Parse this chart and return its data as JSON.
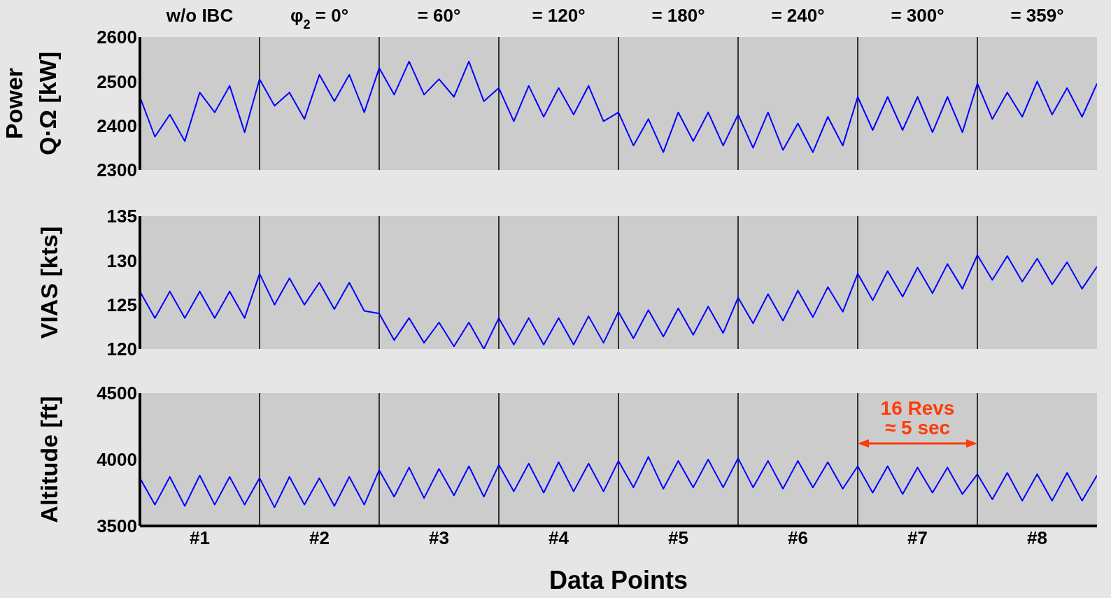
{
  "chart_data": [
    {
      "type": "line",
      "ylabel": "Power\nQ·Ω [kW]",
      "color": "#0000ff",
      "marker": "none",
      "line_style": "solid",
      "grid": false,
      "legend": false,
      "tick_labels": "y",
      "xlim": [
        0,
        8
      ],
      "ylim": [
        2300,
        2600
      ],
      "yticks": [
        2300,
        2400,
        2500,
        2600
      ],
      "annotations": [
        "w/o IBC",
        "φ$_{2}$ = 0°",
        "= 60°",
        "= 120°",
        "= 180°",
        "= 240°",
        "= 300°",
        "= 359°"
      ],
      "ref_lines": [
        {
          "axis": "x",
          "value": 1,
          "color": "#000000"
        },
        {
          "axis": "x",
          "value": 2,
          "color": "#000000"
        },
        {
          "axis": "x",
          "value": 3,
          "color": "#000000"
        },
        {
          "axis": "x",
          "value": 4,
          "color": "#000000"
        },
        {
          "axis": "x",
          "value": 5,
          "color": "#000000"
        },
        {
          "axis": "x",
          "value": 6,
          "color": "#000000"
        },
        {
          "axis": "x",
          "value": 7,
          "color": "#000000"
        }
      ],
      "x": [
        0,
        0.125,
        0.25,
        0.375,
        0.5,
        0.625,
        0.75,
        0.875,
        1,
        1.125,
        1.25,
        1.375,
        1.5,
        1.625,
        1.75,
        1.875,
        2,
        2.125,
        2.25,
        2.375,
        2.5,
        2.625,
        2.75,
        2.875,
        3,
        3.125,
        3.25,
        3.375,
        3.5,
        3.625,
        3.75,
        3.875,
        4,
        4.125,
        4.25,
        4.375,
        4.5,
        4.625,
        4.75,
        4.875,
        5,
        5.125,
        5.25,
        5.375,
        5.5,
        5.625,
        5.75,
        5.875,
        6,
        6.125,
        6.25,
        6.375,
        6.5,
        6.625,
        6.75,
        6.875,
        7,
        7.125,
        7.25,
        7.375,
        7.5,
        7.625,
        7.75,
        7.875,
        8
      ],
      "values": [
        2465,
        2375,
        2425,
        2365,
        2475,
        2430,
        2490,
        2385,
        2505,
        2445,
        2475,
        2415,
        2515,
        2455,
        2515,
        2430,
        2530,
        2470,
        2545,
        2470,
        2505,
        2465,
        2545,
        2455,
        2485,
        2410,
        2490,
        2420,
        2485,
        2425,
        2490,
        2410,
        2430,
        2355,
        2415,
        2340,
        2430,
        2365,
        2430,
        2355,
        2425,
        2350,
        2430,
        2345,
        2405,
        2340,
        2420,
        2355,
        2465,
        2390,
        2465,
        2390,
        2465,
        2385,
        2465,
        2385,
        2495,
        2415,
        2475,
        2420,
        2500,
        2425,
        2485,
        2420,
        2495
      ]
    },
    {
      "type": "line",
      "ylabel": "VIAS [kts]",
      "color": "#0000ff",
      "marker": "none",
      "line_style": "solid",
      "grid": false,
      "legend": false,
      "tick_labels": "y",
      "xlim": [
        0,
        8
      ],
      "ylim": [
        120,
        135
      ],
      "yticks": [
        120,
        125,
        130,
        135
      ],
      "ref_lines": [
        {
          "axis": "x",
          "value": 1,
          "color": "#000000"
        },
        {
          "axis": "x",
          "value": 2,
          "color": "#000000"
        },
        {
          "axis": "x",
          "value": 3,
          "color": "#000000"
        },
        {
          "axis": "x",
          "value": 4,
          "color": "#000000"
        },
        {
          "axis": "x",
          "value": 5,
          "color": "#000000"
        },
        {
          "axis": "x",
          "value": 6,
          "color": "#000000"
        },
        {
          "axis": "x",
          "value": 7,
          "color": "#000000"
        }
      ],
      "x": [
        0,
        0.125,
        0.25,
        0.375,
        0.5,
        0.625,
        0.75,
        0.875,
        1,
        1.125,
        1.25,
        1.375,
        1.5,
        1.625,
        1.75,
        1.875,
        2,
        2.125,
        2.25,
        2.375,
        2.5,
        2.625,
        2.75,
        2.875,
        3,
        3.125,
        3.25,
        3.375,
        3.5,
        3.625,
        3.75,
        3.875,
        4,
        4.125,
        4.25,
        4.375,
        4.5,
        4.625,
        4.75,
        4.875,
        5,
        5.125,
        5.25,
        5.375,
        5.5,
        5.625,
        5.75,
        5.875,
        6,
        6.125,
        6.25,
        6.375,
        6.5,
        6.625,
        6.75,
        6.875,
        7,
        7.125,
        7.25,
        7.375,
        7.5,
        7.625,
        7.75,
        7.875,
        8
      ],
      "values": [
        126.5,
        123.5,
        126.5,
        123.5,
        126.5,
        123.5,
        126.5,
        123.5,
        128.5,
        125,
        128,
        125,
        127.5,
        124.5,
        127.5,
        124.3,
        124,
        121,
        123.5,
        120.7,
        123,
        120.3,
        123,
        120,
        123.5,
        120.5,
        123.5,
        120.5,
        123.5,
        120.5,
        123.7,
        120.7,
        124.2,
        121.2,
        124.4,
        121.4,
        124.6,
        121.6,
        124.8,
        121.8,
        125.8,
        122.9,
        126.2,
        123.2,
        126.6,
        123.6,
        127,
        124.2,
        128.5,
        125.5,
        128.8,
        125.9,
        129.2,
        126.3,
        129.6,
        126.8,
        130.6,
        127.8,
        130.5,
        127.6,
        130.2,
        127.3,
        129.8,
        126.8,
        129.3
      ]
    },
    {
      "type": "line",
      "ylabel": "Altitude [ft]",
      "xlabel": "Data Points",
      "color": "#0000ff",
      "marker": "none",
      "line_style": "solid",
      "grid": false,
      "legend": false,
      "xlim": [
        0,
        8
      ],
      "xticks": [
        {
          "value": 0.5,
          "label": "#1"
        },
        {
          "value": 1.5,
          "label": "#2"
        },
        {
          "value": 2.5,
          "label": "#3"
        },
        {
          "value": 3.5,
          "label": "#4"
        },
        {
          "value": 4.5,
          "label": "#5"
        },
        {
          "value": 5.5,
          "label": "#6"
        },
        {
          "value": 6.5,
          "label": "#7"
        },
        {
          "value": 7.5,
          "label": "#8"
        }
      ],
      "ylim": [
        3500,
        4500
      ],
      "yticks": [
        3500,
        4000,
        4500
      ],
      "annotations": [
        "16 Revs",
        "≈ 5 sec"
      ],
      "ref_lines": [
        {
          "axis": "x",
          "value": 1,
          "color": "#000000"
        },
        {
          "axis": "x",
          "value": 2,
          "color": "#000000"
        },
        {
          "axis": "x",
          "value": 3,
          "color": "#000000"
        },
        {
          "axis": "x",
          "value": 4,
          "color": "#000000"
        },
        {
          "axis": "x",
          "value": 5,
          "color": "#000000"
        },
        {
          "axis": "x",
          "value": 6,
          "color": "#000000"
        },
        {
          "axis": "x",
          "value": 7,
          "color": "#000000"
        }
      ],
      "x": [
        0,
        0.125,
        0.25,
        0.375,
        0.5,
        0.625,
        0.75,
        0.875,
        1,
        1.125,
        1.25,
        1.375,
        1.5,
        1.625,
        1.75,
        1.875,
        2,
        2.125,
        2.25,
        2.375,
        2.5,
        2.625,
        2.75,
        2.875,
        3,
        3.125,
        3.25,
        3.375,
        3.5,
        3.625,
        3.75,
        3.875,
        4,
        4.125,
        4.25,
        4.375,
        4.5,
        4.625,
        4.75,
        4.875,
        5,
        5.125,
        5.25,
        5.375,
        5.5,
        5.625,
        5.75,
        5.875,
        6,
        6.125,
        6.25,
        6.375,
        6.5,
        6.625,
        6.75,
        6.875,
        7,
        7.125,
        7.25,
        7.375,
        7.5,
        7.625,
        7.75,
        7.875,
        8
      ],
      "values": [
        3860,
        3660,
        3870,
        3650,
        3880,
        3660,
        3870,
        3660,
        3860,
        3640,
        3870,
        3660,
        3860,
        3650,
        3870,
        3660,
        3920,
        3720,
        3940,
        3710,
        3930,
        3730,
        3950,
        3720,
        3960,
        3760,
        3970,
        3750,
        3980,
        3760,
        3970,
        3760,
        3990,
        3790,
        4020,
        3780,
        3990,
        3790,
        4000,
        3790,
        4010,
        3790,
        3990,
        3780,
        3990,
        3790,
        3980,
        3780,
        3950,
        3750,
        3950,
        3740,
        3940,
        3750,
        3940,
        3740,
        3890,
        3700,
        3900,
        3690,
        3890,
        3690,
        3900,
        3690,
        3880
      ]
    }
  ]
}
